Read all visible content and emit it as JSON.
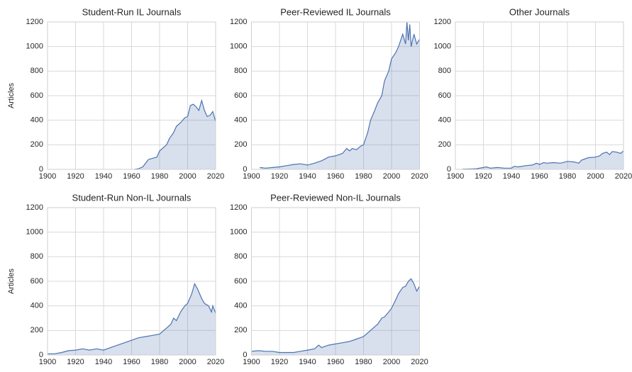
{
  "chart_data": [
    {
      "type": "area",
      "title": "Student-Run IL Journals",
      "ylabel": "Articles",
      "color": "#4c72b0",
      "grid": true,
      "xlim": [
        1900,
        2020
      ],
      "xticks": [
        1900,
        1920,
        1940,
        1960,
        1980,
        2000,
        2020
      ],
      "ylim": [
        0,
        1200
      ],
      "yticks": [
        0,
        200,
        400,
        600,
        800,
        1000,
        1200
      ],
      "x": [
        1962,
        1965,
        1968,
        1970,
        1972,
        1975,
        1978,
        1980,
        1983,
        1985,
        1987,
        1990,
        1992,
        1995,
        1998,
        2000,
        2002,
        2004,
        2006,
        2008,
        2010,
        2012,
        2014,
        2016,
        2018,
        2020
      ],
      "values": [
        0,
        5,
        20,
        50,
        80,
        90,
        100,
        150,
        180,
        200,
        250,
        300,
        350,
        380,
        420,
        430,
        520,
        530,
        510,
        480,
        560,
        480,
        430,
        440,
        470,
        390
      ]
    },
    {
      "type": "area",
      "title": "Peer-Reviewed IL Journals",
      "color": "#4c72b0",
      "grid": true,
      "xlim": [
        1900,
        2020
      ],
      "xticks": [
        1900,
        1920,
        1940,
        1960,
        1980,
        2000,
        2020
      ],
      "ylim": [
        0,
        1200
      ],
      "yticks": [
        0,
        200,
        400,
        600,
        800,
        1000,
        1200
      ],
      "x": [
        1906,
        1910,
        1915,
        1920,
        1925,
        1930,
        1935,
        1940,
        1945,
        1950,
        1955,
        1960,
        1965,
        1968,
        1970,
        1972,
        1975,
        1978,
        1980,
        1983,
        1985,
        1988,
        1990,
        1993,
        1995,
        1998,
        2000,
        2003,
        2005,
        2008,
        2010,
        2011,
        2012,
        2013,
        2014,
        2016,
        2018,
        2020
      ],
      "values": [
        15,
        10,
        15,
        20,
        30,
        40,
        45,
        35,
        50,
        70,
        100,
        110,
        130,
        170,
        150,
        170,
        160,
        190,
        200,
        300,
        400,
        480,
        540,
        600,
        720,
        800,
        900,
        950,
        1000,
        1100,
        1020,
        1200,
        1050,
        1180,
        1000,
        1100,
        1020,
        1060
      ]
    },
    {
      "type": "area",
      "title": "Other Journals",
      "color": "#4c72b0",
      "grid": true,
      "xlim": [
        1900,
        2020
      ],
      "xticks": [
        1900,
        1920,
        1940,
        1960,
        1980,
        2000,
        2020
      ],
      "ylim": [
        0,
        1200
      ],
      "yticks": [
        0,
        200,
        400,
        600,
        800,
        1000,
        1200
      ],
      "x": [
        1905,
        1910,
        1915,
        1920,
        1922,
        1925,
        1930,
        1935,
        1940,
        1942,
        1945,
        1950,
        1955,
        1958,
        1960,
        1963,
        1965,
        1970,
        1975,
        1980,
        1985,
        1988,
        1990,
        1995,
        2000,
        2003,
        2005,
        2008,
        2010,
        2012,
        2015,
        2018,
        2020
      ],
      "values": [
        2,
        3,
        5,
        15,
        20,
        10,
        15,
        10,
        10,
        25,
        20,
        30,
        35,
        50,
        40,
        55,
        50,
        55,
        50,
        65,
        60,
        50,
        75,
        95,
        100,
        110,
        130,
        140,
        120,
        145,
        140,
        130,
        150
      ]
    },
    {
      "type": "area",
      "title": "Student-Run Non-IL Journals",
      "ylabel": "Articles",
      "color": "#4c72b0",
      "grid": true,
      "xlim": [
        1900,
        2020
      ],
      "xticks": [
        1900,
        1920,
        1940,
        1960,
        1980,
        2000,
        2020
      ],
      "ylim": [
        0,
        1200
      ],
      "yticks": [
        0,
        200,
        400,
        600,
        800,
        1000,
        1200
      ],
      "x": [
        1900,
        1905,
        1910,
        1915,
        1920,
        1925,
        1930,
        1935,
        1940,
        1945,
        1950,
        1955,
        1960,
        1965,
        1970,
        1975,
        1980,
        1983,
        1985,
        1988,
        1990,
        1992,
        1995,
        1998,
        2000,
        2003,
        2005,
        2007,
        2010,
        2012,
        2015,
        2017,
        2018,
        2020
      ],
      "values": [
        10,
        10,
        20,
        35,
        40,
        50,
        40,
        50,
        40,
        60,
        80,
        100,
        120,
        140,
        150,
        160,
        170,
        200,
        220,
        250,
        300,
        280,
        350,
        400,
        420,
        500,
        580,
        540,
        460,
        420,
        400,
        350,
        400,
        340
      ]
    },
    {
      "type": "area",
      "title": "Peer-Reviewed Non-IL Journals",
      "color": "#4c72b0",
      "grid": true,
      "xlim": [
        1900,
        2020
      ],
      "xticks": [
        1900,
        1920,
        1940,
        1960,
        1980,
        2000,
        2020
      ],
      "ylim": [
        0,
        1200
      ],
      "yticks": [
        0,
        200,
        400,
        600,
        800,
        1000,
        1200
      ],
      "x": [
        1900,
        1905,
        1910,
        1915,
        1920,
        1925,
        1930,
        1935,
        1940,
        1945,
        1948,
        1950,
        1955,
        1960,
        1965,
        1970,
        1975,
        1980,
        1983,
        1985,
        1988,
        1990,
        1993,
        1995,
        1998,
        2000,
        2003,
        2005,
        2008,
        2010,
        2012,
        2014,
        2016,
        2018,
        2020
      ],
      "values": [
        30,
        35,
        30,
        30,
        20,
        20,
        20,
        30,
        40,
        50,
        80,
        60,
        80,
        90,
        100,
        110,
        130,
        150,
        180,
        200,
        230,
        250,
        300,
        310,
        350,
        380,
        450,
        500,
        550,
        560,
        600,
        620,
        580,
        520,
        560
      ]
    }
  ]
}
